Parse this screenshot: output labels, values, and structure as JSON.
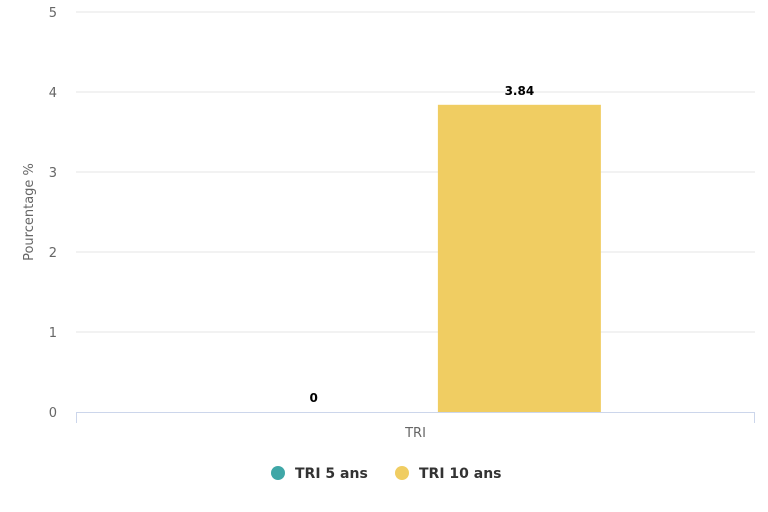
{
  "chart_data": {
    "type": "bar",
    "title": "",
    "xlabel": "",
    "ylabel": "Pourcentage %",
    "categories": [
      "TRI"
    ],
    "ylim": [
      0,
      5
    ],
    "yticks": [
      0,
      1,
      2,
      3,
      4,
      5
    ],
    "grid": true,
    "legend_position": "bottom-center",
    "series": [
      {
        "name": "TRI 5 ans",
        "values": [
          0
        ],
        "color": "#3fa7a7",
        "data_labels": [
          "0"
        ]
      },
      {
        "name": "TRI 10 ans",
        "values": [
          3.84
        ],
        "color": "#f0cd62",
        "data_labels": [
          "3.84"
        ]
      }
    ]
  }
}
